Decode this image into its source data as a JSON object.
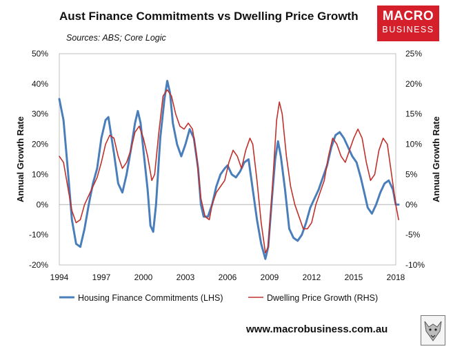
{
  "header": {
    "title": "Aust Finance Commitments vs Dwelling Price Growth",
    "subtitle": "Sources: ABS; Core Logic"
  },
  "logo": {
    "line1": "MACRO",
    "line2": "BUSINESS"
  },
  "footer": {
    "url": "www.macrobusiness.com.au"
  },
  "colors": {
    "finance": "#4a7ebb",
    "price": "#c0302b",
    "brand": "#d51f2a"
  },
  "chart_data": {
    "type": "line",
    "title": "Aust Finance Commitments vs Dwelling Price Growth",
    "xlabel": "",
    "ylabel_left": "Annual Growth Rate",
    "ylabel_right": "Annual Growth Rate",
    "xlim": [
      1994,
      2018
    ],
    "ylim_left": [
      -20,
      50
    ],
    "ylim_right": [
      -10,
      25
    ],
    "x_ticks": [
      "1994",
      "1997",
      "2000",
      "2003",
      "2006",
      "2009",
      "2012",
      "2015",
      "2018"
    ],
    "y_left_ticks": [
      "-20%",
      "-10%",
      "0%",
      "10%",
      "20%",
      "30%",
      "40%",
      "50%"
    ],
    "y_right_ticks": [
      "-10%",
      "-5%",
      "0%",
      "5%",
      "10%",
      "15%",
      "20%",
      "25%"
    ],
    "legend_position": "bottom",
    "series": [
      {
        "name": "Housing Finance Commitments (LHS)",
        "axis": "left",
        "points": [
          [
            1994.0,
            35
          ],
          [
            1994.3,
            28
          ],
          [
            1994.6,
            12
          ],
          [
            1994.9,
            -5
          ],
          [
            1995.2,
            -13
          ],
          [
            1995.5,
            -14
          ],
          [
            1995.8,
            -8
          ],
          [
            1996.1,
            0
          ],
          [
            1996.4,
            7
          ],
          [
            1996.7,
            12
          ],
          [
            1997.0,
            22
          ],
          [
            1997.3,
            28
          ],
          [
            1997.5,
            29
          ],
          [
            1997.7,
            23
          ],
          [
            1997.9,
            17
          ],
          [
            1998.2,
            7
          ],
          [
            1998.5,
            4
          ],
          [
            1998.8,
            10
          ],
          [
            1999.1,
            18
          ],
          [
            1999.4,
            27
          ],
          [
            1999.6,
            31
          ],
          [
            1999.8,
            27
          ],
          [
            2000.0,
            18
          ],
          [
            2000.3,
            5
          ],
          [
            2000.5,
            -7
          ],
          [
            2000.7,
            -9
          ],
          [
            2000.9,
            0
          ],
          [
            2001.2,
            22
          ],
          [
            2001.5,
            35
          ],
          [
            2001.7,
            41
          ],
          [
            2001.9,
            37
          ],
          [
            2002.1,
            27
          ],
          [
            2002.4,
            20
          ],
          [
            2002.7,
            16
          ],
          [
            2003.0,
            20
          ],
          [
            2003.3,
            25
          ],
          [
            2003.6,
            22
          ],
          [
            2003.9,
            12
          ],
          [
            2004.1,
            0
          ],
          [
            2004.3,
            -4
          ],
          [
            2004.6,
            -4
          ],
          [
            2004.9,
            0
          ],
          [
            2005.2,
            6
          ],
          [
            2005.5,
            10
          ],
          [
            2005.8,
            12
          ],
          [
            2006.0,
            13
          ],
          [
            2006.3,
            10
          ],
          [
            2006.6,
            9
          ],
          [
            2006.9,
            11
          ],
          [
            2007.2,
            14
          ],
          [
            2007.5,
            15
          ],
          [
            2007.8,
            5
          ],
          [
            2008.1,
            -5
          ],
          [
            2008.4,
            -13
          ],
          [
            2008.7,
            -18
          ],
          [
            2008.9,
            -14
          ],
          [
            2009.2,
            4
          ],
          [
            2009.4,
            15
          ],
          [
            2009.6,
            21
          ],
          [
            2009.8,
            16
          ],
          [
            2010.1,
            5
          ],
          [
            2010.4,
            -8
          ],
          [
            2010.7,
            -11
          ],
          [
            2011.0,
            -12
          ],
          [
            2011.3,
            -10
          ],
          [
            2011.6,
            -6
          ],
          [
            2011.9,
            -1
          ],
          [
            2012.2,
            2
          ],
          [
            2012.5,
            5
          ],
          [
            2012.8,
            9
          ],
          [
            2013.1,
            13
          ],
          [
            2013.4,
            19
          ],
          [
            2013.7,
            23
          ],
          [
            2014.0,
            24
          ],
          [
            2014.3,
            22
          ],
          [
            2014.6,
            19
          ],
          [
            2014.9,
            16
          ],
          [
            2015.2,
            14
          ],
          [
            2015.5,
            9
          ],
          [
            2015.8,
            3
          ],
          [
            2016.0,
            -1
          ],
          [
            2016.3,
            -3
          ],
          [
            2016.6,
            0
          ],
          [
            2016.9,
            4
          ],
          [
            2017.2,
            7
          ],
          [
            2017.5,
            8
          ],
          [
            2017.8,
            5
          ],
          [
            2018.0,
            0
          ],
          [
            2018.2,
            0
          ]
        ]
      },
      {
        "name": "Dwelling Price Growth (RHS)",
        "axis": "right",
        "points": [
          [
            1994.0,
            8
          ],
          [
            1994.3,
            7
          ],
          [
            1994.6,
            3
          ],
          [
            1994.9,
            -1
          ],
          [
            1995.2,
            -3
          ],
          [
            1995.5,
            -2.5
          ],
          [
            1995.8,
            0
          ],
          [
            1996.1,
            1.5
          ],
          [
            1996.4,
            3
          ],
          [
            1996.7,
            4.5
          ],
          [
            1997.0,
            7
          ],
          [
            1997.3,
            10
          ],
          [
            1997.6,
            11.5
          ],
          [
            1997.9,
            11
          ],
          [
            1998.2,
            8
          ],
          [
            1998.5,
            6
          ],
          [
            1998.8,
            7
          ],
          [
            1999.1,
            9
          ],
          [
            1999.4,
            12
          ],
          [
            1999.7,
            13
          ],
          [
            2000.0,
            11
          ],
          [
            2000.3,
            8
          ],
          [
            2000.6,
            4
          ],
          [
            2000.8,
            5
          ],
          [
            2001.1,
            12
          ],
          [
            2001.4,
            18
          ],
          [
            2001.7,
            19
          ],
          [
            2002.0,
            18
          ],
          [
            2002.3,
            15
          ],
          [
            2002.6,
            13
          ],
          [
            2002.9,
            12.5
          ],
          [
            2003.2,
            13.5
          ],
          [
            2003.5,
            12.5
          ],
          [
            2003.8,
            8
          ],
          [
            2004.1,
            1
          ],
          [
            2004.4,
            -2
          ],
          [
            2004.7,
            -2.5
          ],
          [
            2004.9,
            0
          ],
          [
            2005.2,
            2
          ],
          [
            2005.5,
            3
          ],
          [
            2005.8,
            4
          ],
          [
            2006.1,
            7
          ],
          [
            2006.4,
            9
          ],
          [
            2006.7,
            8
          ],
          [
            2007.0,
            6
          ],
          [
            2007.3,
            9
          ],
          [
            2007.6,
            11
          ],
          [
            2007.8,
            10
          ],
          [
            2008.1,
            4
          ],
          [
            2008.4,
            -3
          ],
          [
            2008.7,
            -8
          ],
          [
            2008.9,
            -7
          ],
          [
            2009.2,
            3
          ],
          [
            2009.5,
            14
          ],
          [
            2009.7,
            17
          ],
          [
            2009.9,
            15
          ],
          [
            2010.2,
            8
          ],
          [
            2010.5,
            3
          ],
          [
            2010.8,
            0
          ],
          [
            2011.1,
            -2
          ],
          [
            2011.4,
            -4
          ],
          [
            2011.7,
            -4
          ],
          [
            2012.0,
            -3
          ],
          [
            2012.3,
            0
          ],
          [
            2012.6,
            2
          ],
          [
            2012.9,
            4
          ],
          [
            2013.2,
            8
          ],
          [
            2013.5,
            11
          ],
          [
            2013.8,
            10
          ],
          [
            2014.1,
            8
          ],
          [
            2014.4,
            7
          ],
          [
            2014.7,
            9
          ],
          [
            2015.0,
            11
          ],
          [
            2015.3,
            12.5
          ],
          [
            2015.6,
            11
          ],
          [
            2015.9,
            7
          ],
          [
            2016.2,
            4
          ],
          [
            2016.5,
            5
          ],
          [
            2016.8,
            9
          ],
          [
            2017.1,
            11
          ],
          [
            2017.4,
            10
          ],
          [
            2017.7,
            5
          ],
          [
            2018.0,
            0
          ],
          [
            2018.2,
            -2.5
          ]
        ]
      }
    ]
  }
}
